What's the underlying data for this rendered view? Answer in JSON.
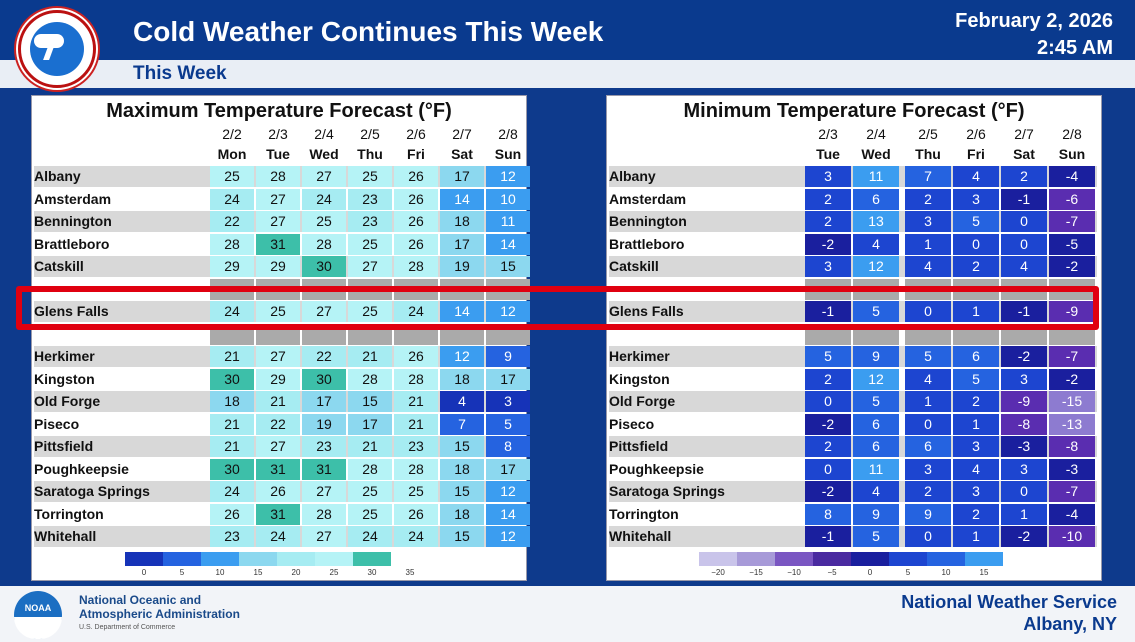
{
  "header": {
    "title": "Cold Weather Continues This Week",
    "date": "February 2, 2026",
    "time": "2:45 AM",
    "subtitle": "This Week",
    "logo_icon": "nws-logo-icon"
  },
  "max_panel": {
    "title": "Maximum Temperature Forecast (°F)",
    "dates": [
      "2/2",
      "2/3",
      "2/4",
      "2/5",
      "2/6",
      "2/7",
      "2/8"
    ],
    "days": [
      "Mon",
      "Tue",
      "Wed",
      "Thu",
      "Fri",
      "Sat",
      "Sun"
    ],
    "legend_ticks": [
      "0",
      "5",
      "10",
      "15",
      "20",
      "25",
      "30",
      "35"
    ]
  },
  "min_panel": {
    "title": "Minimum Temperature Forecast (°F)",
    "dates": [
      "2/3",
      "2/4",
      "2/5",
      "2/6",
      "2/7",
      "2/8"
    ],
    "days": [
      "Tue",
      "Wed",
      "Thu",
      "Fri",
      "Sat",
      "Sun"
    ],
    "legend_ticks": [
      "−20",
      "−15",
      "−10",
      "−5",
      "0",
      "5",
      "10",
      "15"
    ]
  },
  "rows": [
    {
      "city": "Albany",
      "max": [
        25,
        28,
        27,
        25,
        26,
        17,
        12
      ],
      "min": [
        3,
        11,
        7,
        4,
        2,
        -4
      ]
    },
    {
      "city": "Amsterdam",
      "max": [
        24,
        27,
        24,
        23,
        26,
        14,
        10
      ],
      "min": [
        2,
        6,
        2,
        3,
        -1,
        -6
      ]
    },
    {
      "city": "Bennington",
      "max": [
        22,
        27,
        25,
        23,
        26,
        18,
        11
      ],
      "min": [
        2,
        13,
        3,
        5,
        0,
        -7
      ]
    },
    {
      "city": "Brattleboro",
      "max": [
        28,
        31,
        28,
        25,
        26,
        17,
        14
      ],
      "min": [
        -2,
        4,
        1,
        0,
        0,
        -5
      ]
    },
    {
      "city": "Catskill",
      "max": [
        29,
        29,
        30,
        27,
        28,
        19,
        15
      ],
      "min": [
        3,
        12,
        4,
        2,
        4,
        -2
      ]
    },
    {
      "city": "",
      "max": [
        null,
        null,
        null,
        null,
        null,
        null,
        null
      ],
      "min": [
        null,
        null,
        null,
        null,
        null,
        null
      ]
    },
    {
      "city": "Glens Falls",
      "max": [
        24,
        25,
        27,
        25,
        24,
        14,
        12
      ],
      "min": [
        -1,
        5,
        0,
        1,
        -1,
        -9
      ]
    },
    {
      "city": "",
      "max": [
        null,
        null,
        null,
        null,
        null,
        null,
        null
      ],
      "min": [
        null,
        null,
        null,
        null,
        null,
        null
      ]
    },
    {
      "city": "Herkimer",
      "max": [
        21,
        27,
        22,
        21,
        26,
        12,
        9
      ],
      "min": [
        5,
        9,
        5,
        6,
        -2,
        -7
      ]
    },
    {
      "city": "Kingston",
      "max": [
        30,
        29,
        30,
        28,
        28,
        18,
        17
      ],
      "min": [
        2,
        12,
        4,
        5,
        3,
        -2
      ]
    },
    {
      "city": "Old Forge",
      "max": [
        18,
        21,
        17,
        15,
        21,
        4,
        3
      ],
      "min": [
        0,
        5,
        1,
        2,
        -9,
        -15
      ]
    },
    {
      "city": "Piseco",
      "max": [
        21,
        22,
        19,
        17,
        21,
        7,
        5
      ],
      "min": [
        -2,
        6,
        0,
        1,
        -8,
        -13
      ]
    },
    {
      "city": "Pittsfield",
      "max": [
        21,
        27,
        23,
        21,
        23,
        15,
        8
      ],
      "min": [
        2,
        6,
        6,
        3,
        -3,
        -8
      ]
    },
    {
      "city": "Poughkeepsie",
      "max": [
        30,
        31,
        31,
        28,
        28,
        18,
        17
      ],
      "min": [
        0,
        11,
        3,
        4,
        3,
        -3
      ]
    },
    {
      "city": "Saratoga Springs",
      "max": [
        24,
        26,
        27,
        25,
        25,
        15,
        12
      ],
      "min": [
        -2,
        4,
        2,
        3,
        0,
        -7
      ]
    },
    {
      "city": "Torrington",
      "max": [
        26,
        31,
        28,
        25,
        26,
        18,
        14
      ],
      "min": [
        8,
        9,
        9,
        2,
        1,
        -4
      ]
    },
    {
      "city": "Whitehall",
      "max": [
        23,
        24,
        27,
        24,
        24,
        15,
        12
      ],
      "min": [
        -1,
        5,
        0,
        1,
        -2,
        -10
      ]
    }
  ],
  "footer": {
    "noaa_line1": "National Oceanic and",
    "noaa_line2": "Atmospheric Administration",
    "noaa_line3": "U.S. Department of Commerce",
    "noaa_logo_text": "NOAA",
    "nws_line1": "National Weather Service",
    "nws_line2": "Albany, NY"
  }
}
